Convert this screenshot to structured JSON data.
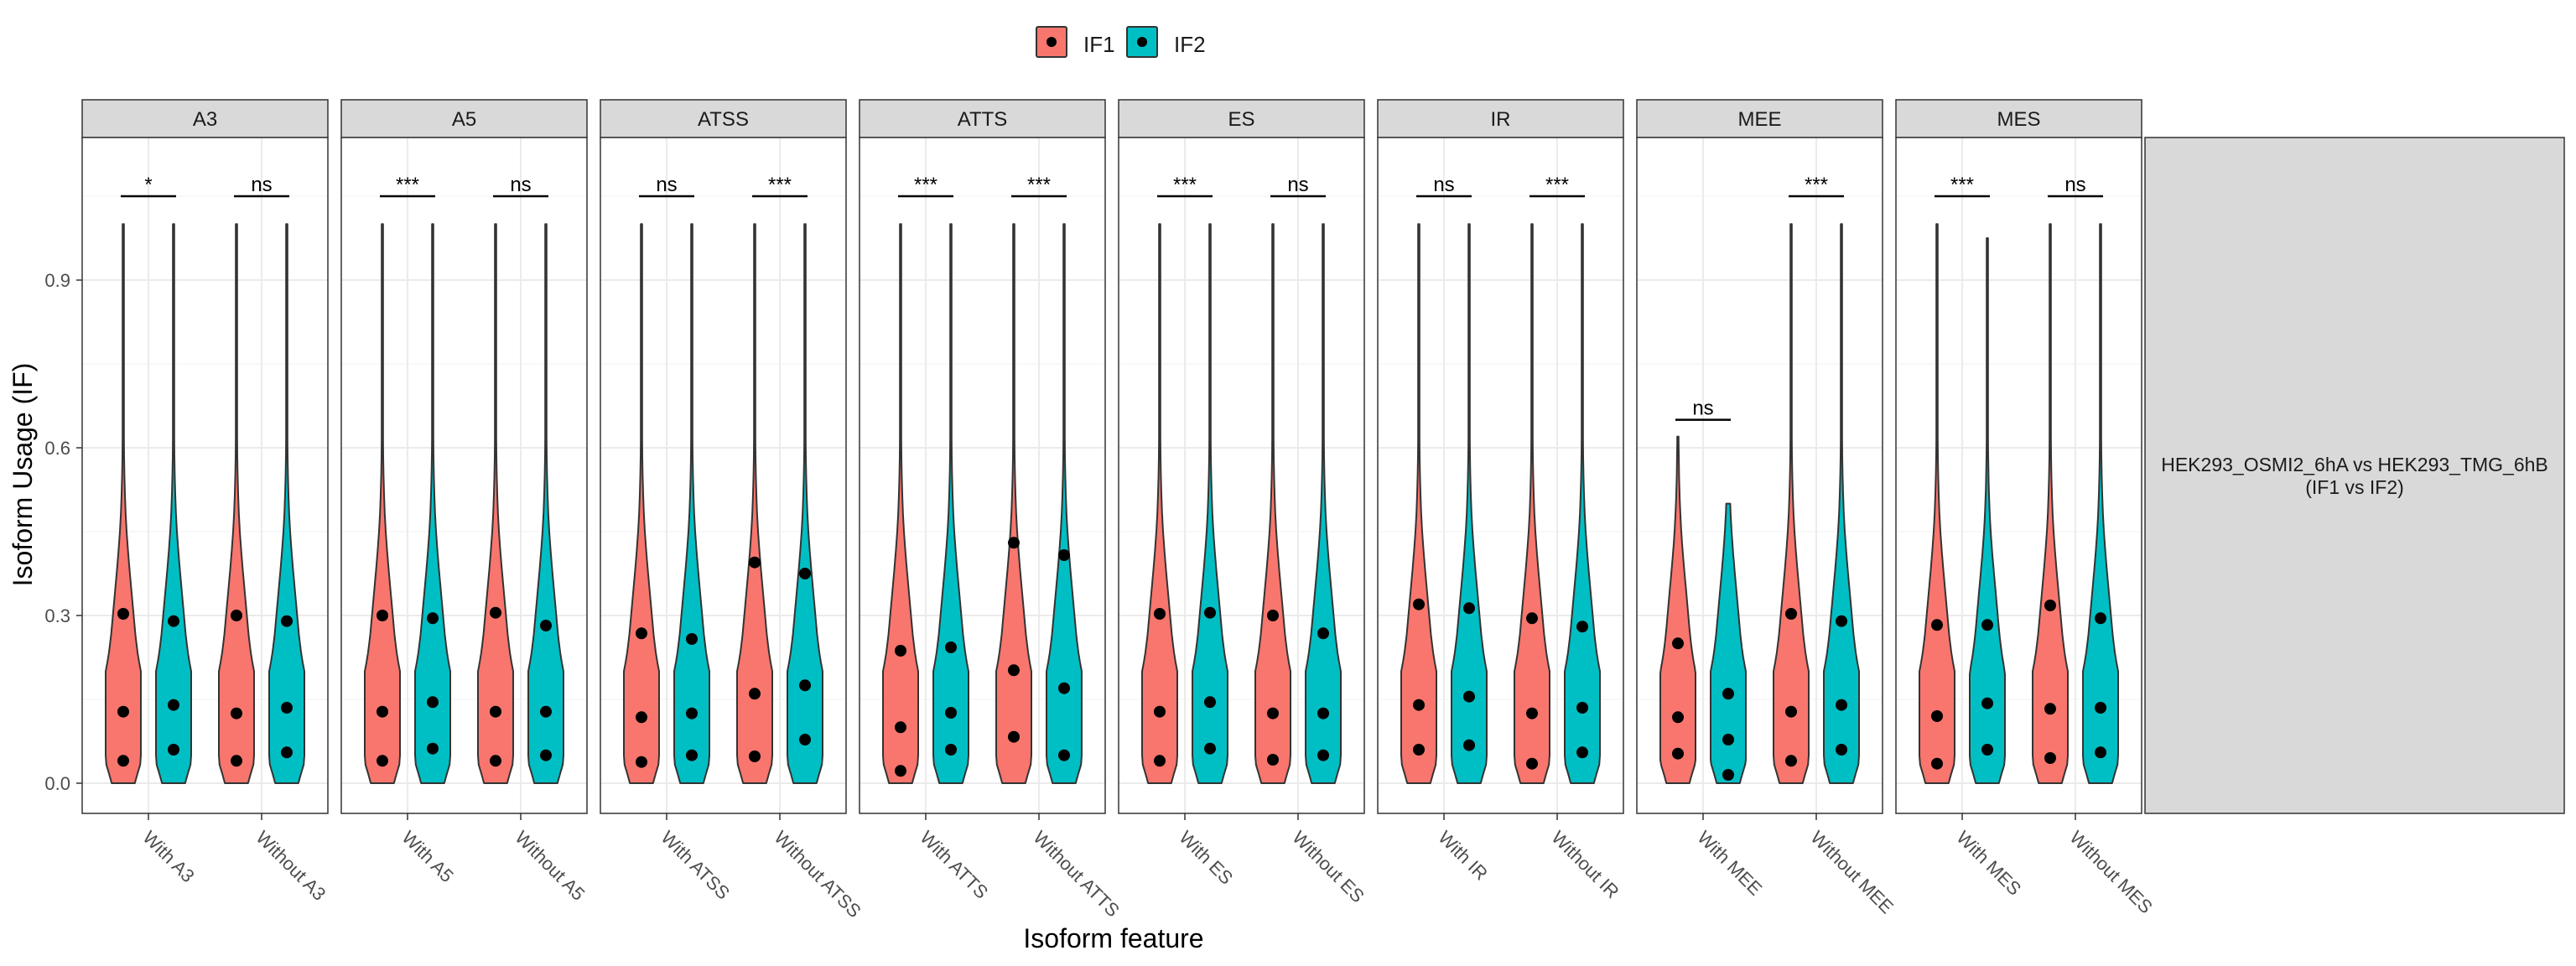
{
  "chart_data": {
    "type": "violin",
    "ylabel": "Isoform Usage (IF)",
    "xlabel": "Isoform feature",
    "ylim": [
      -0.05,
      1.15
    ],
    "yticks": [
      0.0,
      0.3,
      0.6,
      0.9
    ],
    "ytick_labels": [
      "0.0",
      "0.3",
      "0.6",
      "0.9"
    ],
    "grid": true,
    "legend": {
      "position": "top",
      "items": [
        {
          "name": "IF1",
          "color": "#F8766D"
        },
        {
          "name": "IF2",
          "color": "#00BFC4"
        }
      ]
    },
    "side_strip": {
      "line1": "HEK293_OSMI2_6hA vs HEK293_TMG_6hB",
      "line2": "(IF1 vs IF2)"
    },
    "facets": [
      {
        "name": "A3",
        "groups": [
          {
            "label": "With A3",
            "sig": "*",
            "sig_y": 1.05,
            "IF1": {
              "max": 1.0,
              "points": [
                0.303,
                0.128,
                0.04
              ]
            },
            "IF2": {
              "max": 1.0,
              "points": [
                0.29,
                0.14,
                0.06
              ]
            }
          },
          {
            "label": "Without A3",
            "sig": "ns",
            "sig_y": 1.05,
            "IF1": {
              "max": 1.0,
              "points": [
                0.3,
                0.125,
                0.04
              ]
            },
            "IF2": {
              "max": 1.0,
              "points": [
                0.29,
                0.135,
                0.055
              ]
            }
          }
        ]
      },
      {
        "name": "A5",
        "groups": [
          {
            "label": "With A5",
            "sig": "***",
            "sig_y": 1.05,
            "IF1": {
              "max": 1.0,
              "points": [
                0.3,
                0.128,
                0.04
              ]
            },
            "IF2": {
              "max": 1.0,
              "points": [
                0.295,
                0.145,
                0.062
              ]
            }
          },
          {
            "label": "Without A5",
            "sig": "ns",
            "sig_y": 1.05,
            "IF1": {
              "max": 1.0,
              "points": [
                0.305,
                0.128,
                0.04
              ]
            },
            "IF2": {
              "max": 1.0,
              "points": [
                0.282,
                0.128,
                0.05
              ]
            }
          }
        ]
      },
      {
        "name": "ATSS",
        "groups": [
          {
            "label": "With ATSS",
            "sig": "ns",
            "sig_y": 1.05,
            "IF1": {
              "max": 1.0,
              "points": [
                0.268,
                0.118,
                0.038
              ]
            },
            "IF2": {
              "max": 1.0,
              "points": [
                0.258,
                0.125,
                0.05
              ]
            }
          },
          {
            "label": "Without ATSS",
            "sig": "***",
            "sig_y": 1.05,
            "IF1": {
              "max": 1.0,
              "points": [
                0.395,
                0.16,
                0.048
              ]
            },
            "IF2": {
              "max": 1.0,
              "points": [
                0.375,
                0.175,
                0.078
              ]
            }
          }
        ]
      },
      {
        "name": "ATTS",
        "groups": [
          {
            "label": "With ATTS",
            "sig": "***",
            "sig_y": 1.05,
            "IF1": {
              "max": 1.0,
              "points": [
                0.237,
                0.1,
                0.022
              ]
            },
            "IF2": {
              "max": 1.0,
              "points": [
                0.243,
                0.126,
                0.06
              ]
            }
          },
          {
            "label": "Without ATTS",
            "sig": "***",
            "sig_y": 1.05,
            "IF1": {
              "max": 1.0,
              "points": [
                0.43,
                0.202,
                0.083
              ]
            },
            "IF2": {
              "max": 1.0,
              "points": [
                0.408,
                0.17,
                0.05
              ]
            }
          }
        ]
      },
      {
        "name": "ES",
        "groups": [
          {
            "label": "With ES",
            "sig": "***",
            "sig_y": 1.05,
            "IF1": {
              "max": 1.0,
              "points": [
                0.303,
                0.128,
                0.04
              ]
            },
            "IF2": {
              "max": 1.0,
              "points": [
                0.305,
                0.145,
                0.062
              ]
            }
          },
          {
            "label": "Without ES",
            "sig": "ns",
            "sig_y": 1.05,
            "IF1": {
              "max": 1.0,
              "points": [
                0.3,
                0.125,
                0.042
              ]
            },
            "IF2": {
              "max": 1.0,
              "points": [
                0.268,
                0.125,
                0.05
              ]
            }
          }
        ]
      },
      {
        "name": "IR",
        "groups": [
          {
            "label": "With IR",
            "sig": "ns",
            "sig_y": 1.05,
            "IF1": {
              "max": 1.0,
              "points": [
                0.32,
                0.14,
                0.06
              ]
            },
            "IF2": {
              "max": 1.0,
              "points": [
                0.313,
                0.155,
                0.068
              ]
            }
          },
          {
            "label": "Without IR",
            "sig": "***",
            "sig_y": 1.05,
            "IF1": {
              "max": 1.0,
              "points": [
                0.295,
                0.125,
                0.035
              ]
            },
            "IF2": {
              "max": 1.0,
              "points": [
                0.28,
                0.135,
                0.055
              ]
            }
          }
        ]
      },
      {
        "name": "MEE",
        "groups": [
          {
            "label": "With MEE",
            "sig": "ns",
            "sig_y": 0.65,
            "IF1": {
              "max": 0.62,
              "points": [
                0.25,
                0.118,
                0.053
              ]
            },
            "IF2": {
              "max": 0.5,
              "points": [
                0.16,
                0.078,
                0.015
              ]
            }
          },
          {
            "label": "Without MEE",
            "sig": "***",
            "sig_y": 1.05,
            "IF1": {
              "max": 1.0,
              "points": [
                0.303,
                0.128,
                0.04
              ]
            },
            "IF2": {
              "max": 1.0,
              "points": [
                0.29,
                0.14,
                0.06
              ]
            }
          }
        ]
      },
      {
        "name": "MES",
        "groups": [
          {
            "label": "With MES",
            "sig": "***",
            "sig_y": 1.05,
            "IF1": {
              "max": 1.0,
              "points": [
                0.283,
                0.12,
                0.035
              ]
            },
            "IF2": {
              "max": 0.975,
              "points": [
                0.283,
                0.143,
                0.06
              ]
            }
          },
          {
            "label": "Without MES",
            "sig": "ns",
            "sig_y": 1.05,
            "IF1": {
              "max": 1.0,
              "points": [
                0.318,
                0.133,
                0.045
              ]
            },
            "IF2": {
              "max": 1.0,
              "points": [
                0.295,
                0.135,
                0.055
              ]
            }
          }
        ]
      }
    ]
  }
}
